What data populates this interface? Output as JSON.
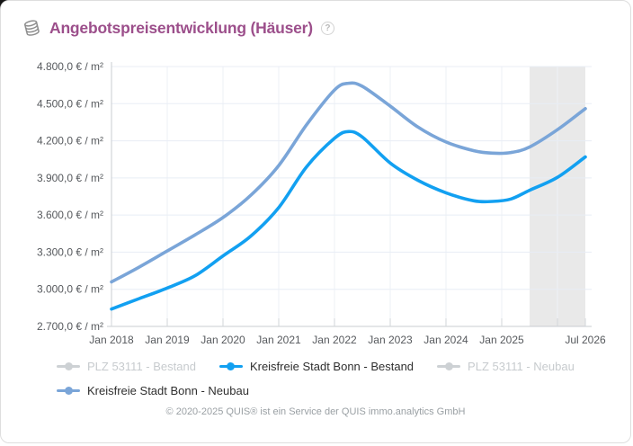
{
  "header": {
    "title": "Angebotspreisentwicklung (Häuser)",
    "title_color": "#9c4f8b",
    "help_label": "?"
  },
  "chart_data": {
    "type": "line",
    "title": "Angebotspreisentwicklung (Häuser)",
    "unit": "€ / m²",
    "ylim": [
      2700,
      4800
    ],
    "grid": true,
    "legend_position": "bottom",
    "x_range_months": [
      0,
      102
    ],
    "forecast_region_months": [
      90,
      102
    ],
    "forecast_region_color": "#e9e9e9",
    "y_ticks": [
      {
        "value": 4800,
        "label": "4.800,0 € / m²"
      },
      {
        "value": 4500,
        "label": "4.500,0 € / m²"
      },
      {
        "value": 4200,
        "label": "4.200,0 € / m²"
      },
      {
        "value": 3900,
        "label": "3.900,0 € / m²"
      },
      {
        "value": 3600,
        "label": "3.600,0 € / m²"
      },
      {
        "value": 3300,
        "label": "3.300,0 € / m²"
      },
      {
        "value": 3000,
        "label": "3.000,0 € / m²"
      },
      {
        "value": 2700,
        "label": "2.700,0 € / m²"
      }
    ],
    "x_ticks": [
      {
        "month": 0,
        "label": "Jan 2018"
      },
      {
        "month": 12,
        "label": "Jan 2019"
      },
      {
        "month": 24,
        "label": "Jan 2020"
      },
      {
        "month": 36,
        "label": "Jan 2021"
      },
      {
        "month": 48,
        "label": "Jan 2022"
      },
      {
        "month": 60,
        "label": "Jan 2023"
      },
      {
        "month": 72,
        "label": "Jan 2024"
      },
      {
        "month": 84,
        "label": "Jan 2025"
      },
      {
        "month": 102,
        "label": "Jul 2026"
      }
    ],
    "x_gridline_months": [
      0,
      12,
      24,
      36,
      48,
      60,
      72,
      84,
      96
    ],
    "series": [
      {
        "name": "PLZ 53111 - Bestand",
        "color": "#cdd1d4",
        "visible": false,
        "points": []
      },
      {
        "name": "Kreisfreie Stadt Bonn - Bestand",
        "color": "#12a0f1",
        "visible": true,
        "points": [
          [
            0,
            2840
          ],
          [
            6,
            2925
          ],
          [
            12,
            3010
          ],
          [
            18,
            3110
          ],
          [
            24,
            3270
          ],
          [
            30,
            3430
          ],
          [
            36,
            3660
          ],
          [
            42,
            3990
          ],
          [
            48,
            4220
          ],
          [
            51,
            4275
          ],
          [
            54,
            4230
          ],
          [
            60,
            4020
          ],
          [
            66,
            3880
          ],
          [
            72,
            3780
          ],
          [
            78,
            3715
          ],
          [
            82,
            3710
          ],
          [
            86,
            3730
          ],
          [
            90,
            3800
          ],
          [
            96,
            3905
          ],
          [
            102,
            4070
          ]
        ]
      },
      {
        "name": "PLZ 53111 - Neubau",
        "color": "#cdd1d4",
        "visible": false,
        "points": []
      },
      {
        "name": "Kreisfreie Stadt Bonn - Neubau",
        "color": "#7aa5d8",
        "visible": true,
        "points": [
          [
            0,
            3060
          ],
          [
            6,
            3180
          ],
          [
            12,
            3310
          ],
          [
            18,
            3440
          ],
          [
            24,
            3580
          ],
          [
            30,
            3760
          ],
          [
            36,
            4000
          ],
          [
            42,
            4330
          ],
          [
            48,
            4610
          ],
          [
            51,
            4665
          ],
          [
            54,
            4640
          ],
          [
            60,
            4480
          ],
          [
            66,
            4310
          ],
          [
            72,
            4190
          ],
          [
            78,
            4120
          ],
          [
            82,
            4100
          ],
          [
            86,
            4105
          ],
          [
            90,
            4150
          ],
          [
            96,
            4290
          ],
          [
            102,
            4460
          ]
        ]
      }
    ]
  },
  "legend": {
    "items": [
      {
        "label": "PLZ 53111 - Bestand",
        "enabled": false,
        "color": "#cdd1d4"
      },
      {
        "label": "Kreisfreie Stadt Bonn - Bestand",
        "enabled": true,
        "color": "#12a0f1"
      },
      {
        "label": "PLZ 53111 - Neubau",
        "enabled": false,
        "color": "#cdd1d4"
      },
      {
        "label": "Kreisfreie Stadt Bonn - Neubau",
        "enabled": true,
        "color": "#7aa5d8"
      }
    ]
  },
  "footer": {
    "copyright": "© 2020-2025 QUIS® ist ein Service der QUIS immo.analytics GmbH"
  }
}
